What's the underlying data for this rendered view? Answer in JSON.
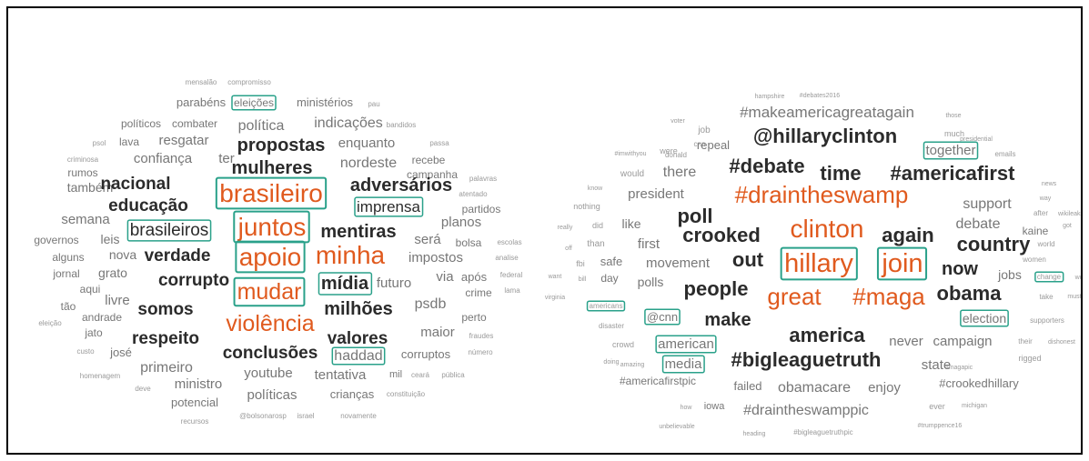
{
  "colors": {
    "orange": "#e05a1e",
    "dark": "#2b2b2b",
    "mid": "#4a4a4a",
    "gray": "#777777",
    "light": "#9a9a9a",
    "box": "#2aa18a"
  },
  "clouds": [
    {
      "name": "portuguese-word-cloud",
      "words": [
        {
          "t": "mensalão",
          "c": "light"
        },
        {
          "t": "compromisso",
          "c": "light"
        },
        {
          "t": "parabéns",
          "c": "gray"
        },
        {
          "t": "eleições",
          "c": "gray",
          "box": true
        },
        {
          "t": "ministérios",
          "c": "gray"
        },
        {
          "t": "pau",
          "c": "light"
        },
        {
          "t": "políticos",
          "c": "gray"
        },
        {
          "t": "combater",
          "c": "gray"
        },
        {
          "t": "política",
          "c": "gray"
        },
        {
          "t": "indicações",
          "c": "gray"
        },
        {
          "t": "bandidos",
          "c": "light"
        },
        {
          "t": "psol",
          "c": "light"
        },
        {
          "t": "lava",
          "c": "gray"
        },
        {
          "t": "resgatar",
          "c": "gray"
        },
        {
          "t": "passa",
          "c": "light"
        },
        {
          "t": "propostas",
          "c": "dark"
        },
        {
          "t": "enquanto",
          "c": "gray"
        },
        {
          "t": "criminosa",
          "c": "light"
        },
        {
          "t": "confiança",
          "c": "gray"
        },
        {
          "t": "ter",
          "c": "gray"
        },
        {
          "t": "recebe",
          "c": "gray"
        },
        {
          "t": "rumos",
          "c": "gray"
        },
        {
          "t": "mulheres",
          "c": "dark"
        },
        {
          "t": "nordeste",
          "c": "gray"
        },
        {
          "t": "campanha",
          "c": "gray"
        },
        {
          "t": "também",
          "c": "gray"
        },
        {
          "t": "nacional",
          "c": "dark"
        },
        {
          "t": "palavras",
          "c": "light"
        },
        {
          "t": "adversários",
          "c": "dark"
        },
        {
          "t": "brasileiro",
          "c": "orange",
          "box": true
        },
        {
          "t": "atentado",
          "c": "light"
        },
        {
          "t": "educação",
          "c": "dark"
        },
        {
          "t": "imprensa",
          "c": "dark",
          "box": true
        },
        {
          "t": "partidos",
          "c": "gray"
        },
        {
          "t": "semana",
          "c": "gray"
        },
        {
          "t": "planos",
          "c": "gray"
        },
        {
          "t": "governos",
          "c": "gray"
        },
        {
          "t": "leis",
          "c": "gray"
        },
        {
          "t": "brasileiros",
          "c": "dark",
          "box": true
        },
        {
          "t": "juntos",
          "c": "orange",
          "box": true
        },
        {
          "t": "mentiras",
          "c": "dark"
        },
        {
          "t": "será",
          "c": "gray"
        },
        {
          "t": "bolsa",
          "c": "gray"
        },
        {
          "t": "escolas",
          "c": "light"
        },
        {
          "t": "alguns",
          "c": "gray"
        },
        {
          "t": "nova",
          "c": "gray"
        },
        {
          "t": "verdade",
          "c": "dark"
        },
        {
          "t": "apoio",
          "c": "orange",
          "box": true
        },
        {
          "t": "minha",
          "c": "orange"
        },
        {
          "t": "impostos",
          "c": "gray"
        },
        {
          "t": "analise",
          "c": "light"
        },
        {
          "t": "jornal",
          "c": "gray"
        },
        {
          "t": "grato",
          "c": "gray"
        },
        {
          "t": "corrupto",
          "c": "dark"
        },
        {
          "t": "via",
          "c": "gray"
        },
        {
          "t": "após",
          "c": "gray"
        },
        {
          "t": "federal",
          "c": "light"
        },
        {
          "t": "aqui",
          "c": "gray"
        },
        {
          "t": "mídia",
          "c": "dark",
          "box": true
        },
        {
          "t": "futuro",
          "c": "gray"
        },
        {
          "t": "crime",
          "c": "gray"
        },
        {
          "t": "lama",
          "c": "light"
        },
        {
          "t": "tão",
          "c": "gray"
        },
        {
          "t": "livre",
          "c": "gray"
        },
        {
          "t": "mudar",
          "c": "orange",
          "box": true
        },
        {
          "t": "psdb",
          "c": "gray"
        },
        {
          "t": "somos",
          "c": "dark"
        },
        {
          "t": "milhões",
          "c": "dark"
        },
        {
          "t": "eleição",
          "c": "light"
        },
        {
          "t": "andrade",
          "c": "gray"
        },
        {
          "t": "perto",
          "c": "gray"
        },
        {
          "t": "jato",
          "c": "gray"
        },
        {
          "t": "violência",
          "c": "orange"
        },
        {
          "t": "maior",
          "c": "gray"
        },
        {
          "t": "fraudes",
          "c": "light"
        },
        {
          "t": "respeito",
          "c": "dark"
        },
        {
          "t": "valores",
          "c": "dark"
        },
        {
          "t": "custo",
          "c": "light"
        },
        {
          "t": "josé",
          "c": "gray"
        },
        {
          "t": "conclusões",
          "c": "dark"
        },
        {
          "t": "haddad",
          "c": "gray",
          "box": true
        },
        {
          "t": "corruptos",
          "c": "gray"
        },
        {
          "t": "número",
          "c": "light"
        },
        {
          "t": "primeiro",
          "c": "gray"
        },
        {
          "t": "homenagem",
          "c": "light"
        },
        {
          "t": "youtube",
          "c": "gray"
        },
        {
          "t": "tentativa",
          "c": "gray"
        },
        {
          "t": "mil",
          "c": "gray"
        },
        {
          "t": "ceará",
          "c": "light"
        },
        {
          "t": "pública",
          "c": "light"
        },
        {
          "t": "deve",
          "c": "light"
        },
        {
          "t": "ministro",
          "c": "gray"
        },
        {
          "t": "políticas",
          "c": "gray"
        },
        {
          "t": "crianças",
          "c": "gray"
        },
        {
          "t": "constituição",
          "c": "light"
        },
        {
          "t": "potencial",
          "c": "gray"
        },
        {
          "t": "recursos",
          "c": "light"
        },
        {
          "t": "@bolsonarosp",
          "c": "light"
        },
        {
          "t": "israel",
          "c": "light"
        },
        {
          "t": "novamente",
          "c": "light"
        }
      ]
    },
    {
      "name": "english-word-cloud",
      "words": [
        {
          "t": "hampshire",
          "c": "light"
        },
        {
          "t": "#debates2016",
          "c": "light"
        },
        {
          "t": "voter",
          "c": "light"
        },
        {
          "t": "those",
          "c": "light"
        },
        {
          "t": "job",
          "c": "light"
        },
        {
          "t": "#makeamericagreatagain",
          "c": "gray"
        },
        {
          "t": "much",
          "c": "light"
        },
        {
          "t": "cnn",
          "c": "light"
        },
        {
          "t": "presidential",
          "c": "light"
        },
        {
          "t": "donald",
          "c": "light"
        },
        {
          "t": "@hillaryclinton",
          "c": "dark"
        },
        {
          "t": "#imwithyou",
          "c": "light"
        },
        {
          "t": "were",
          "c": "light"
        },
        {
          "t": "repeal",
          "c": "gray"
        },
        {
          "t": "together",
          "c": "gray",
          "box": true
        },
        {
          "t": "emails",
          "c": "light"
        },
        {
          "t": "would",
          "c": "light"
        },
        {
          "t": "there",
          "c": "gray"
        },
        {
          "t": "#debate",
          "c": "dark"
        },
        {
          "t": "time",
          "c": "dark"
        },
        {
          "t": "#americafirst",
          "c": "dark"
        },
        {
          "t": "know",
          "c": "light"
        },
        {
          "t": "news",
          "c": "light"
        },
        {
          "t": "president",
          "c": "gray"
        },
        {
          "t": "#draintheswamp",
          "c": "orange"
        },
        {
          "t": "way",
          "c": "light"
        },
        {
          "t": "nothing",
          "c": "light"
        },
        {
          "t": "support",
          "c": "gray"
        },
        {
          "t": "after",
          "c": "light"
        },
        {
          "t": "wikileaks",
          "c": "light"
        },
        {
          "t": "really",
          "c": "light"
        },
        {
          "t": "did",
          "c": "light"
        },
        {
          "t": "like",
          "c": "gray"
        },
        {
          "t": "poll",
          "c": "dark"
        },
        {
          "t": "clinton",
          "c": "orange"
        },
        {
          "t": "debate",
          "c": "gray"
        },
        {
          "t": "kaine",
          "c": "gray"
        },
        {
          "t": "got",
          "c": "light"
        },
        {
          "t": "off",
          "c": "light"
        },
        {
          "t": "than",
          "c": "light"
        },
        {
          "t": "first",
          "c": "gray"
        },
        {
          "t": "crooked",
          "c": "dark"
        },
        {
          "t": "again",
          "c": "dark"
        },
        {
          "t": "country",
          "c": "dark"
        },
        {
          "t": "world",
          "c": "light"
        },
        {
          "t": "fbi",
          "c": "light"
        },
        {
          "t": "safe",
          "c": "gray"
        },
        {
          "t": "movement",
          "c": "gray"
        },
        {
          "t": "women",
          "c": "light"
        },
        {
          "t": "want",
          "c": "light"
        },
        {
          "t": "bill",
          "c": "light"
        },
        {
          "t": "day",
          "c": "gray"
        },
        {
          "t": "out",
          "c": "dark"
        },
        {
          "t": "hillary",
          "c": "orange",
          "box": true
        },
        {
          "t": "join",
          "c": "orange",
          "box": true
        },
        {
          "t": "now",
          "c": "dark"
        },
        {
          "t": "jobs",
          "c": "gray"
        },
        {
          "t": "change",
          "c": "light",
          "box": true
        },
        {
          "t": "won",
          "c": "light"
        },
        {
          "t": "polls",
          "c": "gray"
        },
        {
          "t": "virginia",
          "c": "light"
        },
        {
          "t": "people",
          "c": "dark"
        },
        {
          "t": "take",
          "c": "light"
        },
        {
          "t": "must",
          "c": "light"
        },
        {
          "t": "great",
          "c": "orange"
        },
        {
          "t": "#maga",
          "c": "orange"
        },
        {
          "t": "obama",
          "c": "dark"
        },
        {
          "t": "americans",
          "c": "light",
          "box": true
        },
        {
          "t": "@cnn",
          "c": "gray",
          "box": true
        },
        {
          "t": "make",
          "c": "dark"
        },
        {
          "t": "election",
          "c": "gray",
          "box": true
        },
        {
          "t": "supporters",
          "c": "light"
        },
        {
          "t": "disaster",
          "c": "light"
        },
        {
          "t": "america",
          "c": "dark"
        },
        {
          "t": "never",
          "c": "gray"
        },
        {
          "t": "campaign",
          "c": "gray"
        },
        {
          "t": "their",
          "c": "light"
        },
        {
          "t": "dishonest",
          "c": "light"
        },
        {
          "t": "crowd",
          "c": "light"
        },
        {
          "t": "american",
          "c": "gray",
          "box": true
        },
        {
          "t": "doing",
          "c": "light"
        },
        {
          "t": "#bigleaguetruth",
          "c": "dark"
        },
        {
          "t": "state",
          "c": "gray"
        },
        {
          "t": "rigged",
          "c": "light"
        },
        {
          "t": "amazing",
          "c": "light"
        },
        {
          "t": "media",
          "c": "gray",
          "box": true
        },
        {
          "t": "enjoy",
          "c": "gray"
        },
        {
          "t": "#magapic",
          "c": "light"
        },
        {
          "t": "#americafirstpic",
          "c": "gray"
        },
        {
          "t": "failed",
          "c": "gray"
        },
        {
          "t": "obamacare",
          "c": "gray"
        },
        {
          "t": "#crookedhillary",
          "c": "gray"
        },
        {
          "t": "how",
          "c": "light"
        },
        {
          "t": "iowa",
          "c": "gray"
        },
        {
          "t": "#draintheswamppic",
          "c": "gray"
        },
        {
          "t": "ever",
          "c": "light"
        },
        {
          "t": "michigan",
          "c": "light"
        },
        {
          "t": "unbelievable",
          "c": "light"
        },
        {
          "t": "#trumppence16",
          "c": "light"
        },
        {
          "t": "heading",
          "c": "light"
        },
        {
          "t": "#bigleaguetruthpic",
          "c": "light"
        }
      ]
    }
  ]
}
